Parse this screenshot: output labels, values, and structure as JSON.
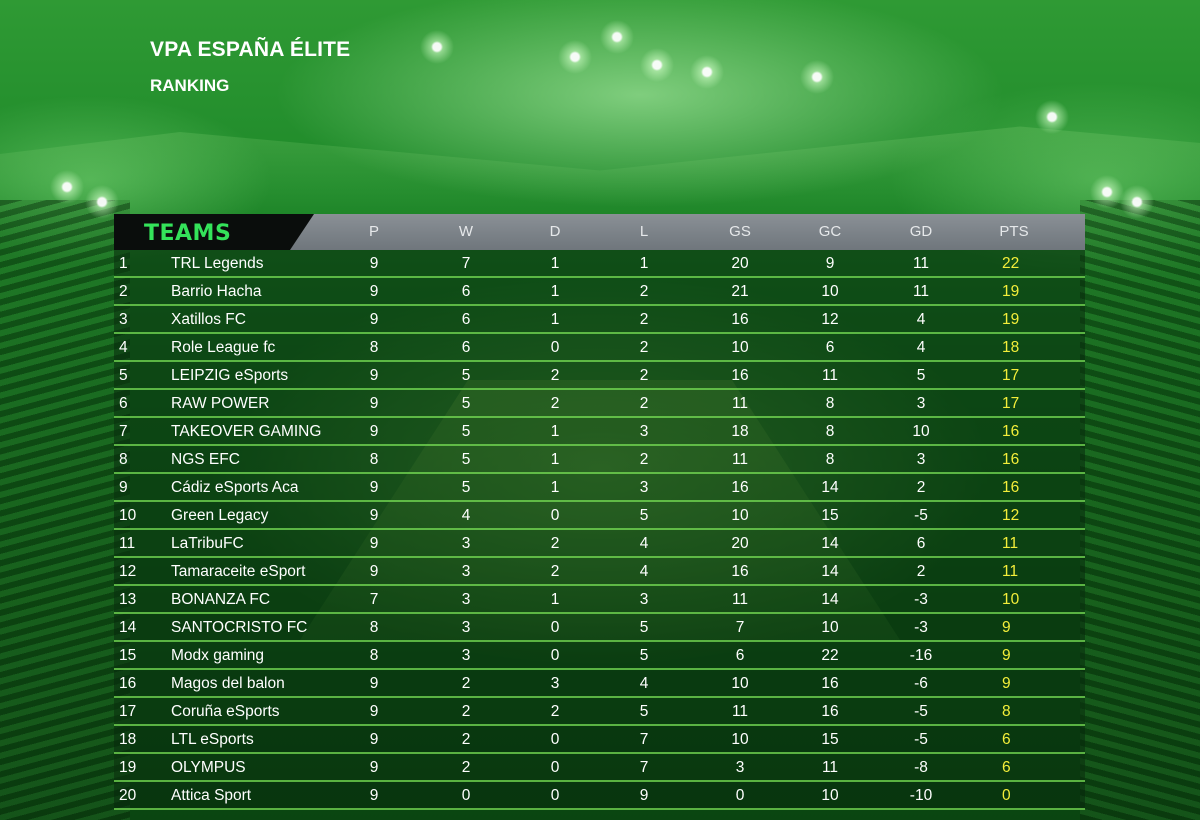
{
  "header": {
    "title": "VPA ESPAÑA ÉLITE",
    "subtitle": "RANKING"
  },
  "colors": {
    "teams_label": "#34e35a",
    "points": "#f3ee3a",
    "row_separator": "#76dc54"
  },
  "table": {
    "teams_label": "TEAMS",
    "columns": [
      "P",
      "W",
      "D",
      "L",
      "GS",
      "GC",
      "GD",
      "PTS"
    ],
    "rows": [
      {
        "rank": "1",
        "team": "TRL Legends",
        "p": "9",
        "w": "7",
        "d": "1",
        "l": "1",
        "gs": "20",
        "gc": "9",
        "gd": "11",
        "pts": "22"
      },
      {
        "rank": "2",
        "team": "Barrio Hacha",
        "p": "9",
        "w": "6",
        "d": "1",
        "l": "2",
        "gs": "21",
        "gc": "10",
        "gd": "11",
        "pts": "19"
      },
      {
        "rank": "3",
        "team": "Xatillos FC",
        "p": "9",
        "w": "6",
        "d": "1",
        "l": "2",
        "gs": "16",
        "gc": "12",
        "gd": "4",
        "pts": "19"
      },
      {
        "rank": "4",
        "team": "Role League fc",
        "p": "8",
        "w": "6",
        "d": "0",
        "l": "2",
        "gs": "10",
        "gc": "6",
        "gd": "4",
        "pts": "18"
      },
      {
        "rank": "5",
        "team": "LEIPZIG eSports",
        "p": "9",
        "w": "5",
        "d": "2",
        "l": "2",
        "gs": "16",
        "gc": "11",
        "gd": "5",
        "pts": "17"
      },
      {
        "rank": "6",
        "team": "RAW POWER",
        "p": "9",
        "w": "5",
        "d": "2",
        "l": "2",
        "gs": "11",
        "gc": "8",
        "gd": "3",
        "pts": "17"
      },
      {
        "rank": "7",
        "team": "TAKEOVER GAMING",
        "p": "9",
        "w": "5",
        "d": "1",
        "l": "3",
        "gs": "18",
        "gc": "8",
        "gd": "10",
        "pts": "16"
      },
      {
        "rank": "8",
        "team": "NGS EFC",
        "p": "8",
        "w": "5",
        "d": "1",
        "l": "2",
        "gs": "11",
        "gc": "8",
        "gd": "3",
        "pts": "16"
      },
      {
        "rank": "9",
        "team": "Cádiz eSports Aca",
        "p": "9",
        "w": "5",
        "d": "1",
        "l": "3",
        "gs": "16",
        "gc": "14",
        "gd": "2",
        "pts": "16"
      },
      {
        "rank": "10",
        "team": "Green Legacy",
        "p": "9",
        "w": "4",
        "d": "0",
        "l": "5",
        "gs": "10",
        "gc": "15",
        "gd": "-5",
        "pts": "12"
      },
      {
        "rank": "11",
        "team": "LaTribuFC",
        "p": "9",
        "w": "3",
        "d": "2",
        "l": "4",
        "gs": "20",
        "gc": "14",
        "gd": "6",
        "pts": "11"
      },
      {
        "rank": "12",
        "team": "Tamaraceite eSport",
        "p": "9",
        "w": "3",
        "d": "2",
        "l": "4",
        "gs": "16",
        "gc": "14",
        "gd": "2",
        "pts": "11"
      },
      {
        "rank": "13",
        "team": "BONANZA FC",
        "p": "7",
        "w": "3",
        "d": "1",
        "l": "3",
        "gs": "11",
        "gc": "14",
        "gd": "-3",
        "pts": "10"
      },
      {
        "rank": "14",
        "team": "SANTOCRISTO FC",
        "p": "8",
        "w": "3",
        "d": "0",
        "l": "5",
        "gs": "7",
        "gc": "10",
        "gd": "-3",
        "pts": "9"
      },
      {
        "rank": "15",
        "team": "Modx gaming",
        "p": "8",
        "w": "3",
        "d": "0",
        "l": "5",
        "gs": "6",
        "gc": "22",
        "gd": "-16",
        "pts": "9"
      },
      {
        "rank": "16",
        "team": "Magos del balon",
        "p": "9",
        "w": "2",
        "d": "3",
        "l": "4",
        "gs": "10",
        "gc": "16",
        "gd": "-6",
        "pts": "9"
      },
      {
        "rank": "17",
        "team": "Coruña eSports",
        "p": "9",
        "w": "2",
        "d": "2",
        "l": "5",
        "gs": "11",
        "gc": "16",
        "gd": "-5",
        "pts": "8"
      },
      {
        "rank": "18",
        "team": "LTL eSports",
        "p": "9",
        "w": "2",
        "d": "0",
        "l": "7",
        "gs": "10",
        "gc": "15",
        "gd": "-5",
        "pts": "6"
      },
      {
        "rank": "19",
        "team": "OLYMPUS",
        "p": "9",
        "w": "2",
        "d": "0",
        "l": "7",
        "gs": "3",
        "gc": "11",
        "gd": "-8",
        "pts": "6"
      },
      {
        "rank": "20",
        "team": "Attica Sport",
        "p": "9",
        "w": "0",
        "d": "0",
        "l": "9",
        "gs": "0",
        "gc": "10",
        "gd": "-10",
        "pts": "0"
      }
    ]
  }
}
